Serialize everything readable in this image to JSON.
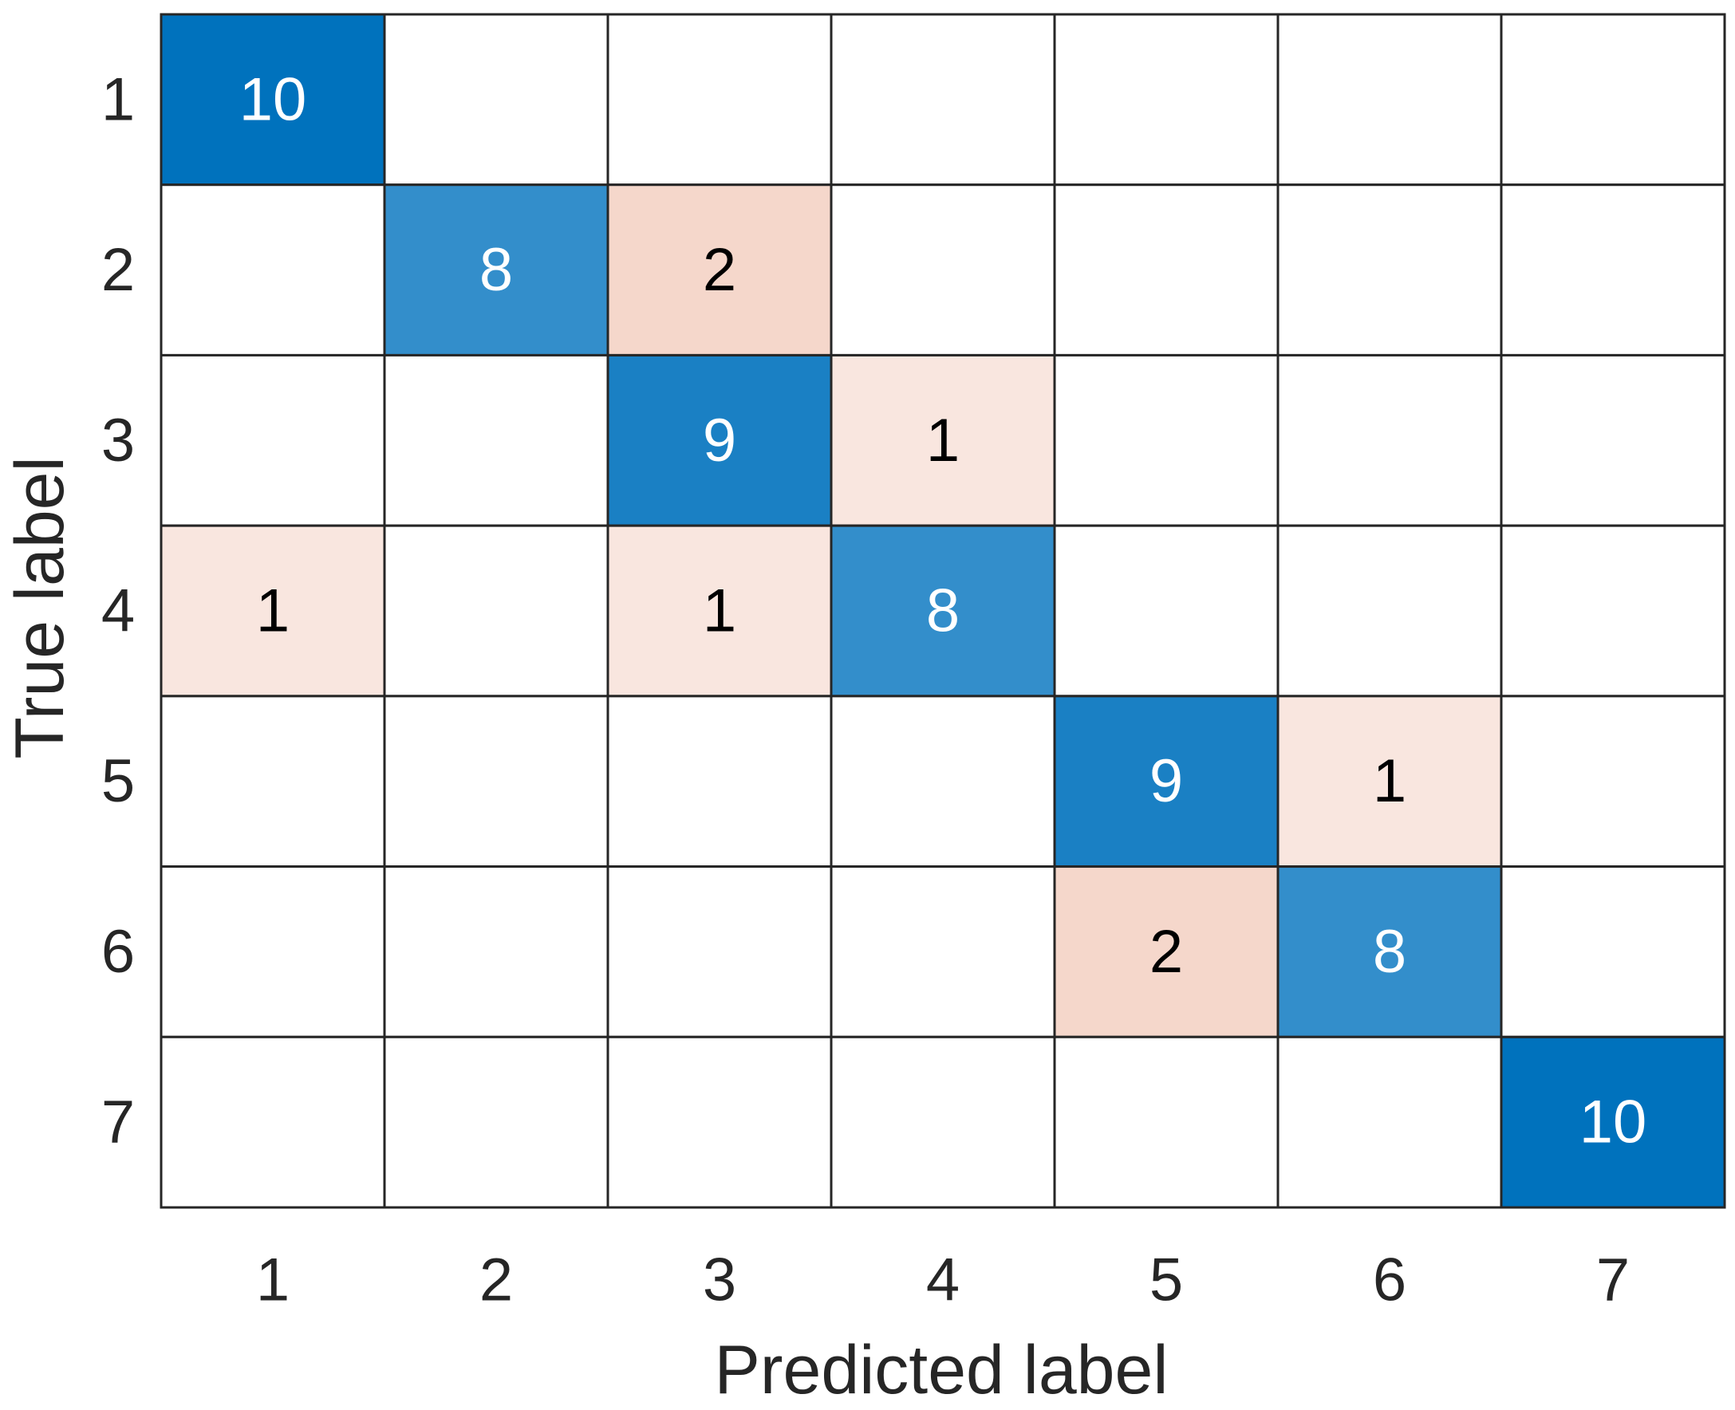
{
  "chart_data": {
    "type": "heatmap",
    "title": "",
    "xlabel": "Predicted label",
    "ylabel": "True label",
    "x_categories": [
      "1",
      "2",
      "3",
      "4",
      "5",
      "6",
      "7"
    ],
    "y_categories": [
      "1",
      "2",
      "3",
      "4",
      "5",
      "6",
      "7"
    ],
    "values": [
      [
        10,
        0,
        0,
        0,
        0,
        0,
        0
      ],
      [
        0,
        8,
        2,
        0,
        0,
        0,
        0
      ],
      [
        0,
        0,
        9,
        1,
        0,
        0,
        0
      ],
      [
        1,
        0,
        1,
        8,
        0,
        0,
        0
      ],
      [
        0,
        0,
        0,
        0,
        9,
        1,
        0
      ],
      [
        0,
        0,
        0,
        0,
        2,
        8,
        0
      ],
      [
        0,
        0,
        0,
        0,
        0,
        0,
        10
      ]
    ],
    "zero_cells_labeled": false,
    "colors": {
      "diagonal_high": "#0072BD",
      "diagonal_9": "#1A80C4",
      "diagonal_8": "#338ECB",
      "offdiag_2": "#F5D7CB",
      "offdiag_1": "#F9E6DF",
      "empty": "#FFFFFF",
      "grid_line": "#262626",
      "text_dark": "#000000",
      "text_light": "#FFFFFF"
    }
  }
}
